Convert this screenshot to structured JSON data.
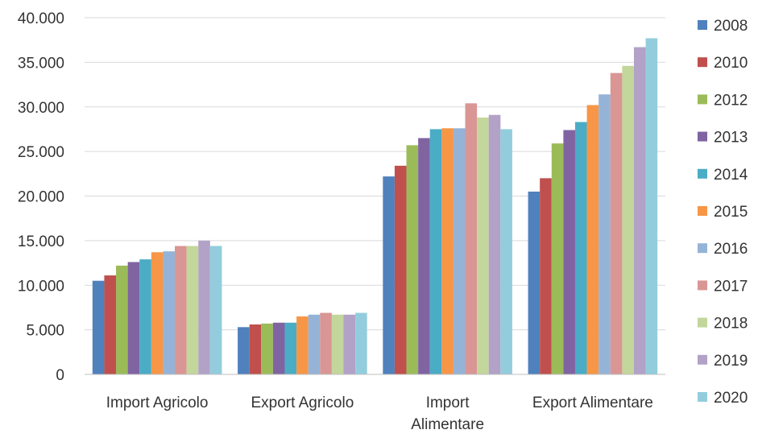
{
  "chart_data": {
    "type": "bar",
    "title": "",
    "xlabel": "",
    "ylabel": "",
    "ylim": [
      0,
      40000
    ],
    "yticks": [
      0,
      5000,
      10000,
      15000,
      20000,
      25000,
      30000,
      35000,
      40000
    ],
    "ytick_labels": [
      "0",
      "5.000",
      "10.000",
      "15.000",
      "20.000",
      "25.000",
      "30.000",
      "35.000",
      "40.000"
    ],
    "grid": true,
    "legend_position": "right",
    "categories": [
      [
        "Import Agricolo"
      ],
      [
        "Export Agricolo"
      ],
      [
        "Import",
        "Alimentare"
      ],
      [
        "Export Alimentare"
      ]
    ],
    "series": [
      {
        "name": "2008",
        "color": "#4f81bd",
        "values": [
          10500,
          5300,
          22200,
          20500
        ]
      },
      {
        "name": "2010",
        "color": "#c0504d",
        "values": [
          11100,
          5600,
          23400,
          22000
        ]
      },
      {
        "name": "2012",
        "color": "#9bbb59",
        "values": [
          12200,
          5700,
          25700,
          25900
        ]
      },
      {
        "name": "2013",
        "color": "#8064a2",
        "values": [
          12600,
          5800,
          26500,
          27400
        ]
      },
      {
        "name": "2014",
        "color": "#4bacc6",
        "values": [
          12900,
          5800,
          27500,
          28300
        ]
      },
      {
        "name": "2015",
        "color": "#f79646",
        "values": [
          13700,
          6500,
          27600,
          30200
        ]
      },
      {
        "name": "2016",
        "color": "#95b3d7",
        "values": [
          13800,
          6700,
          27600,
          31400
        ]
      },
      {
        "name": "2017",
        "color": "#d99694",
        "values": [
          14400,
          6900,
          30400,
          33800
        ]
      },
      {
        "name": "2018",
        "color": "#c3d69b",
        "values": [
          14400,
          6700,
          28800,
          34600
        ]
      },
      {
        "name": "2019",
        "color": "#b2a2c7",
        "values": [
          15000,
          6700,
          29100,
          36700
        ]
      },
      {
        "name": "2020",
        "color": "#93cddd",
        "values": [
          14400,
          6900,
          27500,
          37700
        ]
      }
    ]
  }
}
